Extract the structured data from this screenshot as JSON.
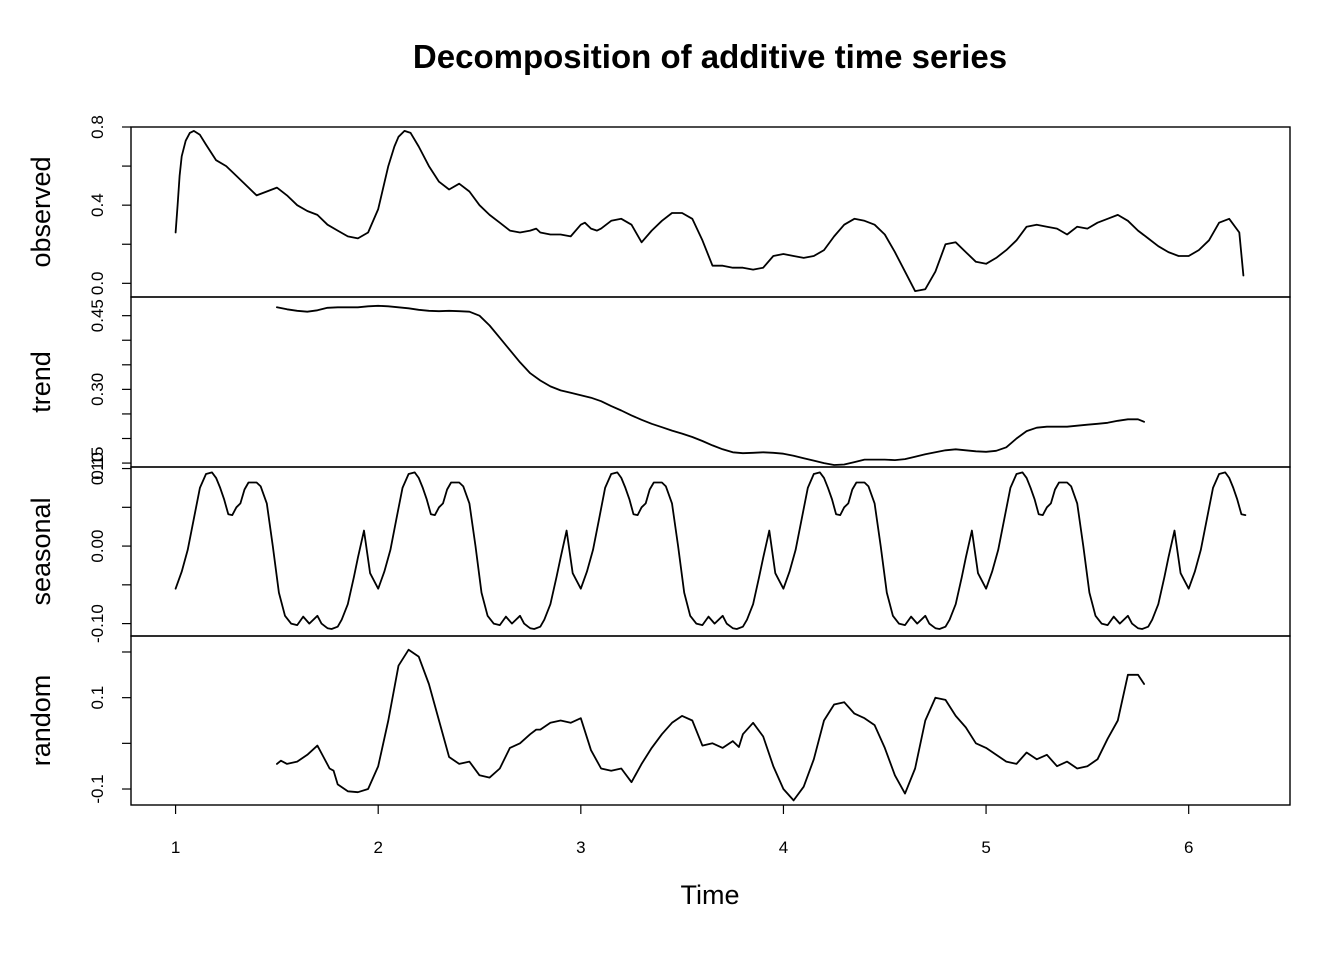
{
  "chart_data": {
    "type": "line",
    "title": "Decomposition of additive time series",
    "xlabel": "Time",
    "x_ticks": [
      "1",
      "2",
      "3",
      "4",
      "5",
      "6"
    ],
    "xlim": [
      0.78,
      6.5
    ],
    "grid": false,
    "panels": [
      {
        "name": "observed",
        "ylabel": "observed",
        "ylim": [
          -0.07,
          0.8
        ],
        "y_ticks": [
          0.0,
          0.4,
          0.8
        ],
        "y_tick_labels": [
          "0.0",
          "0.4",
          "0.8"
        ],
        "minor_step": 0.2,
        "x": [
          1.0,
          1.01,
          1.02,
          1.03,
          1.05,
          1.07,
          1.09,
          1.12,
          1.15,
          1.2,
          1.25,
          1.3,
          1.35,
          1.4,
          1.45,
          1.5,
          1.55,
          1.6,
          1.65,
          1.7,
          1.75,
          1.8,
          1.85,
          1.9,
          1.95,
          2.0,
          2.05,
          2.08,
          2.1,
          2.13,
          2.16,
          2.2,
          2.25,
          2.3,
          2.35,
          2.4,
          2.45,
          2.5,
          2.55,
          2.6,
          2.65,
          2.7,
          2.75,
          2.78,
          2.8,
          2.85,
          2.9,
          2.95,
          3.0,
          3.02,
          3.05,
          3.08,
          3.1,
          3.15,
          3.2,
          3.25,
          3.3,
          3.35,
          3.4,
          3.45,
          3.5,
          3.55,
          3.6,
          3.65,
          3.7,
          3.75,
          3.8,
          3.85,
          3.9,
          3.95,
          4.0,
          4.05,
          4.1,
          4.15,
          4.2,
          4.25,
          4.3,
          4.35,
          4.4,
          4.45,
          4.5,
          4.55,
          4.6,
          4.65,
          4.7,
          4.75,
          4.8,
          4.85,
          4.9,
          4.95,
          5.0,
          5.05,
          5.1,
          5.15,
          5.2,
          5.25,
          5.3,
          5.35,
          5.4,
          5.45,
          5.5,
          5.55,
          5.6,
          5.65,
          5.7,
          5.75,
          5.8,
          5.85,
          5.9,
          5.95,
          6.0,
          6.05,
          6.1,
          6.15,
          6.2,
          6.25,
          6.27
        ],
        "y": [
          0.26,
          0.4,
          0.55,
          0.65,
          0.73,
          0.77,
          0.78,
          0.76,
          0.71,
          0.63,
          0.6,
          0.55,
          0.5,
          0.45,
          0.47,
          0.49,
          0.45,
          0.4,
          0.37,
          0.35,
          0.3,
          0.27,
          0.24,
          0.23,
          0.26,
          0.38,
          0.6,
          0.7,
          0.75,
          0.78,
          0.77,
          0.7,
          0.6,
          0.52,
          0.48,
          0.51,
          0.47,
          0.4,
          0.35,
          0.31,
          0.27,
          0.26,
          0.27,
          0.28,
          0.26,
          0.25,
          0.25,
          0.24,
          0.3,
          0.31,
          0.28,
          0.27,
          0.28,
          0.32,
          0.33,
          0.3,
          0.21,
          0.27,
          0.32,
          0.36,
          0.36,
          0.33,
          0.22,
          0.09,
          0.09,
          0.08,
          0.08,
          0.07,
          0.08,
          0.14,
          0.15,
          0.14,
          0.13,
          0.14,
          0.17,
          0.24,
          0.3,
          0.33,
          0.32,
          0.3,
          0.25,
          0.16,
          0.06,
          -0.04,
          -0.03,
          0.06,
          0.2,
          0.21,
          0.16,
          0.11,
          0.1,
          0.13,
          0.17,
          0.22,
          0.29,
          0.3,
          0.29,
          0.28,
          0.25,
          0.29,
          0.28,
          0.31,
          0.33,
          0.35,
          0.32,
          0.27,
          0.23,
          0.19,
          0.16,
          0.14,
          0.14,
          0.17,
          0.22,
          0.31,
          0.33,
          0.26,
          0.04
        ]
      },
      {
        "name": "trend",
        "ylabel": "trend",
        "ylim": [
          0.142,
          0.488
        ],
        "y_ticks": [
          0.15,
          0.3,
          0.45
        ],
        "y_tick_labels": [
          "0.15",
          "0.30",
          "0.45"
        ],
        "minor_step": 0.05,
        "x": [
          1.5,
          1.55,
          1.6,
          1.65,
          1.7,
          1.75,
          1.8,
          1.85,
          1.9,
          1.95,
          2.0,
          2.05,
          2.1,
          2.15,
          2.2,
          2.25,
          2.3,
          2.35,
          2.4,
          2.45,
          2.5,
          2.55,
          2.6,
          2.65,
          2.7,
          2.75,
          2.8,
          2.85,
          2.9,
          2.95,
          3.0,
          3.05,
          3.1,
          3.15,
          3.2,
          3.25,
          3.3,
          3.35,
          3.4,
          3.45,
          3.5,
          3.55,
          3.6,
          3.65,
          3.7,
          3.75,
          3.8,
          3.85,
          3.9,
          3.95,
          4.0,
          4.05,
          4.1,
          4.15,
          4.2,
          4.25,
          4.3,
          4.35,
          4.4,
          4.45,
          4.5,
          4.55,
          4.6,
          4.65,
          4.7,
          4.75,
          4.8,
          4.85,
          4.9,
          4.95,
          5.0,
          5.05,
          5.1,
          5.15,
          5.2,
          5.25,
          5.3,
          5.35,
          5.4,
          5.45,
          5.5,
          5.55,
          5.6,
          5.65,
          5.7,
          5.75,
          5.78
        ],
        "y": [
          0.467,
          0.463,
          0.46,
          0.458,
          0.461,
          0.466,
          0.467,
          0.467,
          0.467,
          0.469,
          0.47,
          0.469,
          0.467,
          0.465,
          0.462,
          0.46,
          0.459,
          0.46,
          0.459,
          0.458,
          0.45,
          0.43,
          0.405,
          0.38,
          0.355,
          0.333,
          0.318,
          0.306,
          0.298,
          0.293,
          0.288,
          0.283,
          0.276,
          0.266,
          0.257,
          0.247,
          0.238,
          0.23,
          0.223,
          0.216,
          0.21,
          0.203,
          0.195,
          0.186,
          0.178,
          0.172,
          0.17,
          0.171,
          0.172,
          0.171,
          0.169,
          0.165,
          0.16,
          0.155,
          0.15,
          0.146,
          0.147,
          0.152,
          0.157,
          0.157,
          0.157,
          0.156,
          0.158,
          0.163,
          0.168,
          0.172,
          0.176,
          0.178,
          0.176,
          0.174,
          0.173,
          0.175,
          0.182,
          0.2,
          0.215,
          0.222,
          0.224,
          0.224,
          0.224,
          0.226,
          0.228,
          0.23,
          0.232,
          0.236,
          0.239,
          0.239,
          0.234
        ]
      },
      {
        "name": "seasonal",
        "ylabel": "seasonal",
        "ylim": [
          -0.116,
          0.102
        ],
        "y_ticks": [
          -0.1,
          0.0,
          0.1
        ],
        "y_tick_labels": [
          "-0.10",
          "0.00",
          "0.10"
        ],
        "minor_step": 0.05,
        "cycle_x": [
          0.0,
          0.03,
          0.06,
          0.09,
          0.12,
          0.15,
          0.18,
          0.2,
          0.22,
          0.24,
          0.26,
          0.28,
          0.3,
          0.32,
          0.34,
          0.36,
          0.38,
          0.4,
          0.42,
          0.45,
          0.48,
          0.51,
          0.54,
          0.57,
          0.6,
          0.63,
          0.66,
          0.7,
          0.72,
          0.74,
          0.75,
          0.77,
          0.8,
          0.82,
          0.85,
          0.88,
          0.9,
          0.93,
          0.96,
          1.0
        ],
        "cycle_y": [
          -0.055,
          -0.033,
          -0.005,
          0.035,
          0.075,
          0.093,
          0.095,
          0.088,
          0.075,
          0.06,
          0.041,
          0.04,
          0.05,
          0.055,
          0.073,
          0.082,
          0.082,
          0.082,
          0.077,
          0.055,
          0.0,
          -0.06,
          -0.09,
          -0.1,
          -0.102,
          -0.091,
          -0.1,
          -0.09,
          -0.1,
          -0.104,
          -0.106,
          -0.107,
          -0.104,
          -0.095,
          -0.075,
          -0.04,
          -0.015,
          0.02,
          -0.035,
          -0.055
        ],
        "periods": [
          1,
          2,
          3,
          4,
          5,
          6
        ],
        "x_end": 6.28
      },
      {
        "name": "random",
        "ylabel": "random",
        "ylim": [
          -0.135,
          0.235
        ],
        "y_ticks": [
          -0.1,
          0.1
        ],
        "y_tick_labels": [
          "-0.1",
          "0.1"
        ],
        "minor_step": 0.1,
        "x": [
          1.5,
          1.52,
          1.55,
          1.6,
          1.65,
          1.7,
          1.73,
          1.76,
          1.78,
          1.8,
          1.85,
          1.9,
          1.95,
          2.0,
          2.05,
          2.1,
          2.15,
          2.2,
          2.25,
          2.3,
          2.35,
          2.4,
          2.45,
          2.5,
          2.55,
          2.6,
          2.65,
          2.7,
          2.75,
          2.78,
          2.8,
          2.85,
          2.9,
          2.95,
          3.0,
          3.05,
          3.1,
          3.15,
          3.2,
          3.25,
          3.3,
          3.35,
          3.4,
          3.45,
          3.5,
          3.55,
          3.6,
          3.65,
          3.7,
          3.75,
          3.78,
          3.8,
          3.85,
          3.9,
          3.95,
          4.0,
          4.05,
          4.1,
          4.15,
          4.2,
          4.25,
          4.3,
          4.35,
          4.4,
          4.45,
          4.5,
          4.55,
          4.6,
          4.65,
          4.7,
          4.75,
          4.8,
          4.85,
          4.9,
          4.95,
          5.0,
          5.05,
          5.1,
          5.15,
          5.2,
          5.25,
          5.3,
          5.35,
          5.4,
          5.45,
          5.5,
          5.55,
          5.6,
          5.65,
          5.7,
          5.75,
          5.78
        ],
        "y": [
          -0.045,
          -0.038,
          -0.045,
          -0.04,
          -0.025,
          -0.005,
          -0.03,
          -0.055,
          -0.06,
          -0.09,
          -0.105,
          -0.107,
          -0.1,
          -0.05,
          0.05,
          0.17,
          0.205,
          0.19,
          0.13,
          0.05,
          -0.03,
          -0.045,
          -0.04,
          -0.07,
          -0.075,
          -0.055,
          -0.01,
          0.0,
          0.02,
          0.03,
          0.03,
          0.045,
          0.05,
          0.045,
          0.055,
          -0.015,
          -0.055,
          -0.06,
          -0.055,
          -0.085,
          -0.045,
          -0.01,
          0.02,
          0.045,
          0.06,
          0.05,
          -0.005,
          0.0,
          -0.01,
          0.005,
          -0.008,
          0.02,
          0.045,
          0.015,
          -0.05,
          -0.1,
          -0.125,
          -0.095,
          -0.035,
          0.05,
          0.085,
          0.09,
          0.065,
          0.055,
          0.04,
          -0.01,
          -0.07,
          -0.11,
          -0.055,
          0.05,
          0.1,
          0.095,
          0.06,
          0.035,
          0.0,
          -0.01,
          -0.025,
          -0.04,
          -0.045,
          -0.02,
          -0.035,
          -0.025,
          -0.05,
          -0.04,
          -0.055,
          -0.05,
          -0.035,
          0.01,
          0.05,
          0.15,
          0.15,
          0.13
        ]
      }
    ]
  }
}
